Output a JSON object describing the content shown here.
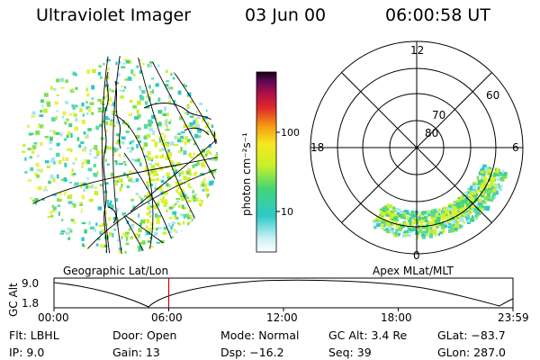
{
  "header": {
    "instrument": "Ultraviolet Imager",
    "date": "03 Jun 00",
    "time": "06:00:58 UT"
  },
  "left_panel": {
    "caption": "Geographic Lat/Lon"
  },
  "right_panel": {
    "caption": "Apex MLat/MLT",
    "lat_labels": [
      "80",
      "70",
      "60"
    ],
    "mlt_labels": {
      "top": "12",
      "bottom": "0",
      "left": "18",
      "right": "6"
    }
  },
  "colorbar": {
    "label": "photon cm⁻²s⁻¹",
    "ticks": [
      "100",
      "10"
    ]
  },
  "timeline": {
    "ylabel": "GC Alt",
    "ytick_top": "9.0",
    "ytick_bottom": "1.8",
    "xticks": [
      "00:00",
      "06:00",
      "12:00",
      "18:00",
      "23:59"
    ],
    "current_time_fraction": 0.25
  },
  "footer": {
    "flt": "Flt: LBHL",
    "ip": "IP:  9.0",
    "door": "Door: Open",
    "gain": "Gain: 13",
    "mode": "Mode: Normal",
    "dsp": "Dsp:  −16.2",
    "gcalt": "GC Alt: 3.4 Re",
    "seq": "Seq: 39",
    "glat": "GLat: −83.7",
    "glon": "GLon: 287.0"
  }
}
